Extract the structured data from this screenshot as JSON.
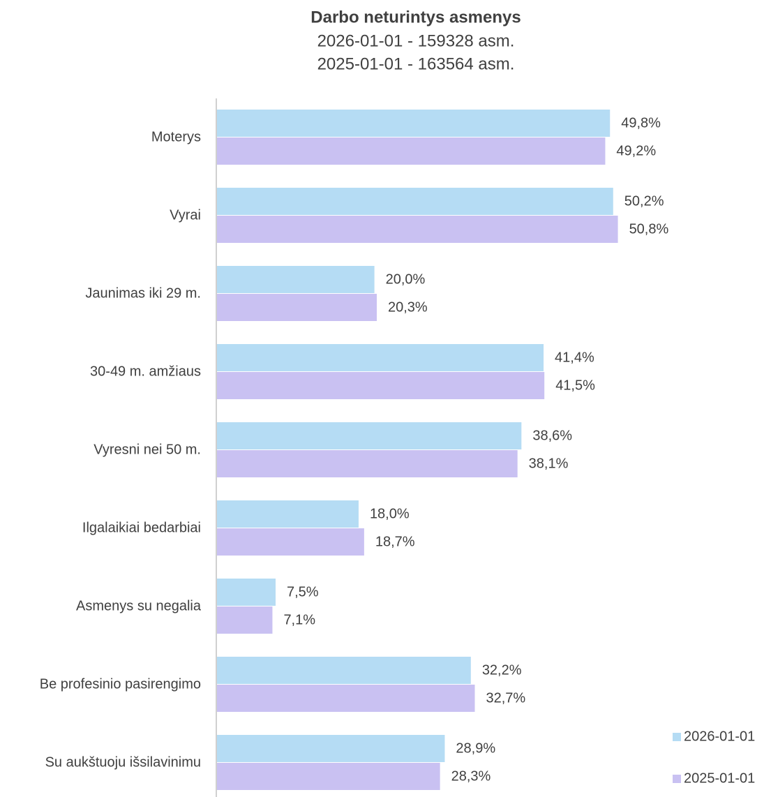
{
  "chart_data": {
    "type": "barh",
    "title": "Darbo neturintys asmenys",
    "subtitle": [
      "2026-01-01 - 159328 asm.",
      "2025-01-01 - 163564 asm."
    ],
    "categories": [
      "Moterys",
      "Vyrai",
      "Jaunimas iki 29 m.",
      "30-49 m. amžiaus",
      "Vyresni nei 50 m.",
      "Ilgalaikiai bedarbiai",
      "Asmenys su negalia",
      "Be profesinio pasirengimo",
      "Su aukštuoju išsilavinimu"
    ],
    "series": [
      {
        "name": "2026-01-01",
        "color": "#b5dcf4",
        "values": [
          49.8,
          50.2,
          20.0,
          41.4,
          38.6,
          18.0,
          7.5,
          32.2,
          28.9
        ],
        "value_labels": [
          "49,8%",
          "50,2%",
          "20,0%",
          "41,4%",
          "38,6%",
          "18,0%",
          "7,5%",
          "32,2%",
          "28,9%"
        ]
      },
      {
        "name": "2025-01-01",
        "color": "#c9c1f2",
        "values": [
          49.2,
          50.8,
          20.3,
          41.5,
          38.1,
          18.7,
          7.1,
          32.7,
          28.3
        ],
        "value_labels": [
          "49,2%",
          "50,8%",
          "20,3%",
          "41,5%",
          "38,1%",
          "18,7%",
          "7,1%",
          "32,7%",
          "28,3%"
        ]
      }
    ],
    "xlim": [
      0,
      70
    ],
    "legend": "lower right"
  }
}
